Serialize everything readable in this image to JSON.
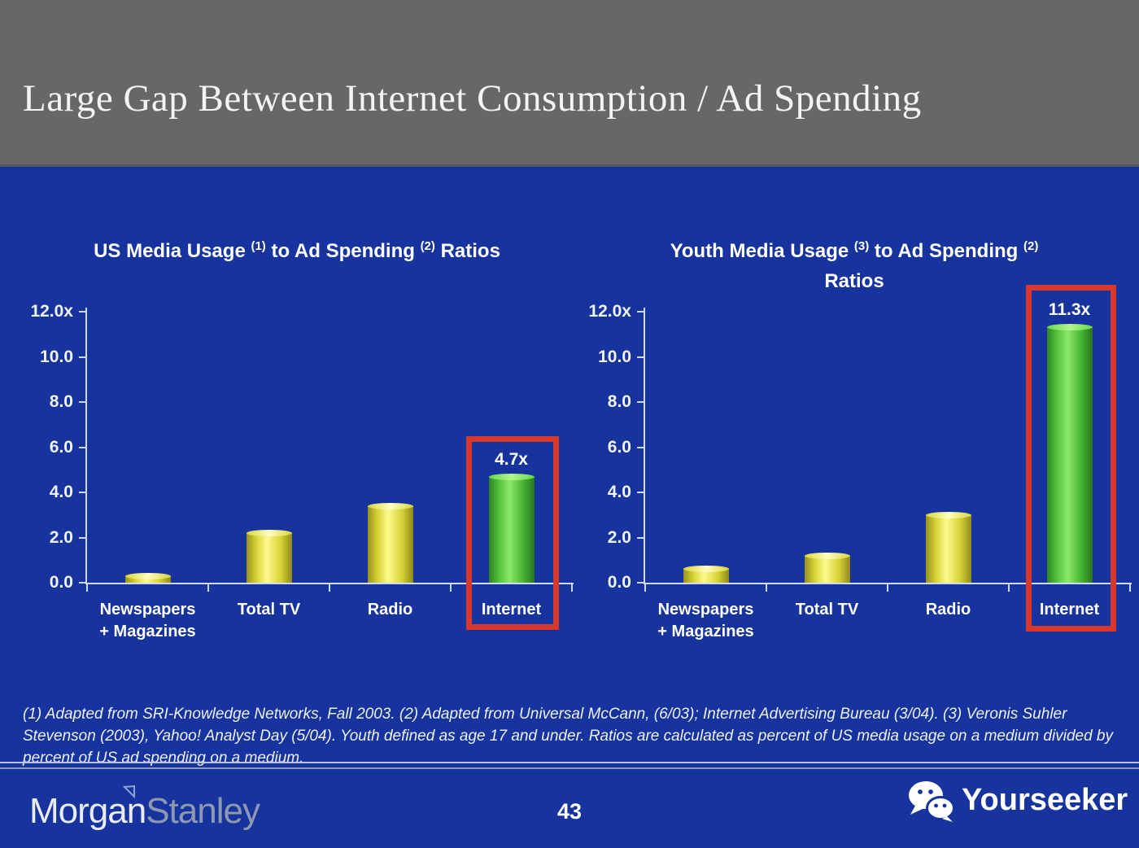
{
  "slide": {
    "title": "Large Gap Between Internet Consumption / Ad Spending",
    "page_number": "43",
    "footnote": "(1) Adapted from SRI-Knowledge Networks, Fall 2003.  (2) Adapted from Universal McCann, (6/03); Internet Advertising Bureau (3/04). (3) Veronis Suhler Stevenson (2003), Yahoo! Analyst Day (5/04).  Youth defined as age 17 and under.  Ratios are calculated as percent of US media usage on a medium divided by percent of US ad spending on a medium.",
    "brand": {
      "part1": "Morgan",
      "part2": "Stanley",
      "flag_icon": "morgan-stanley-triangle-icon"
    },
    "watermark": {
      "label": "Yourseeker",
      "icon": "wechat-icon"
    }
  },
  "colors": {
    "background_blue": "#16339e",
    "header_gray": "#676766",
    "highlight_red": "#d8392c",
    "bar_yellow": "#e8e23a",
    "bar_green": "#52c33e",
    "axis_line": "#cfd8ee",
    "text_white": "#ffffff"
  },
  "chart_data": [
    {
      "type": "bar",
      "id": "us",
      "title": "US Media Usage (1) to Ad Spending (2) Ratios",
      "title_lines": [
        [
          {
            "t": "US Media Usage "
          },
          {
            "s": "(1)"
          },
          {
            "t": " to Ad Spending "
          },
          {
            "s": "(2)"
          },
          {
            "t": " Ratios"
          }
        ]
      ],
      "categories": [
        "Newspapers + Magazines",
        "Total TV",
        "Radio",
        "Internet"
      ],
      "category_lines": [
        [
          "Newspapers",
          "+ Magazines"
        ],
        [
          "Total TV"
        ],
        [
          "Radio"
        ],
        [
          "Internet"
        ]
      ],
      "slugs": [
        "newspapers-magazines",
        "total-tv",
        "radio",
        "internet"
      ],
      "values": [
        0.3,
        2.2,
        3.4,
        4.7
      ],
      "bar_labels": [
        "",
        "",
        "",
        "4.7x"
      ],
      "bar_styles": [
        "bar-yellow",
        "bar-yellow",
        "bar-yellow",
        "bar-green"
      ],
      "highlight_index": 3,
      "y_ticks": [
        "0.0",
        "2.0",
        "4.0",
        "6.0",
        "8.0",
        "10.0",
        "12.0x"
      ],
      "ylim": [
        0,
        12
      ],
      "grid": false,
      "legend": "none"
    },
    {
      "type": "bar",
      "id": "youth",
      "title": "Youth Media Usage (3) to Ad Spending (2) Ratios",
      "title_lines": [
        [
          {
            "t": "Youth Media Usage "
          },
          {
            "s": "(3)"
          },
          {
            "t": " to Ad Spending "
          },
          {
            "s": "(2)"
          }
        ],
        [
          {
            "t": "Ratios"
          }
        ]
      ],
      "categories": [
        "Newspapers + Magazines",
        "Total TV",
        "Radio",
        "Internet"
      ],
      "category_lines": [
        [
          "Newspapers",
          "+ Magazines"
        ],
        [
          "Total TV"
        ],
        [
          "Radio"
        ],
        [
          "Internet"
        ]
      ],
      "slugs": [
        "newspapers-magazines",
        "total-tv",
        "radio",
        "internet"
      ],
      "values": [
        0.6,
        1.2,
        3.0,
        11.3
      ],
      "bar_labels": [
        "",
        "",
        "",
        "11.3x"
      ],
      "bar_styles": [
        "bar-yellow",
        "bar-yellow",
        "bar-yellow",
        "bar-green"
      ],
      "highlight_index": 3,
      "y_ticks": [
        "0.0",
        "2.0",
        "4.0",
        "6.0",
        "8.0",
        "10.0",
        "12.0x"
      ],
      "ylim": [
        0,
        12
      ],
      "grid": false,
      "legend": "none"
    }
  ]
}
